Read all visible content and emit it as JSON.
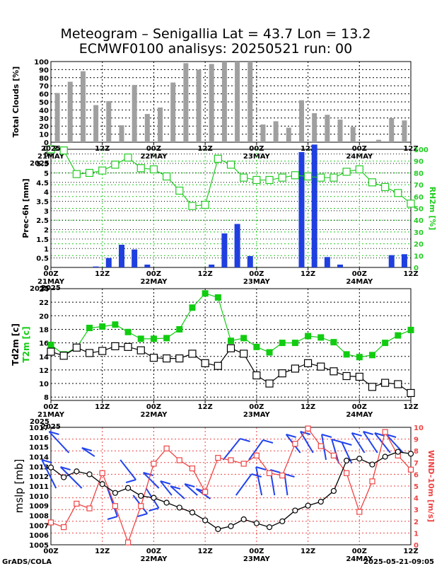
{
  "title": {
    "line1": "Meteogram – Senigallia Lat = 43.7 Lon = 13.2",
    "line2": "ECMWF0100 analisys: 20250521 run: 00"
  },
  "footer": {
    "left": "GrADS/COLA",
    "right": "2025-05-21-09:05"
  },
  "colors": {
    "bars_gray": "#a0a0a0",
    "bars_blue": "#1f3fe0",
    "rh_green": "#22cc22",
    "t2m_green": "#11cc11",
    "wind_red": "#ee4444",
    "barb_blue": "#2244ee",
    "grid": "#000000",
    "grid_green": "#22cc22",
    "grid_red": "#ee4444"
  },
  "time_axis": {
    "ticks": [
      "00Z",
      "12Z",
      "00Z",
      "12Z",
      "00Z",
      "12Z",
      "00Z",
      "12Z"
    ],
    "dates": [
      {
        "pos": 0,
        "label": "21MAY"
      },
      {
        "pos": 2,
        "label": "22MAY"
      },
      {
        "pos": 4,
        "label": "23MAY"
      },
      {
        "pos": 6,
        "label": "24MAY"
      }
    ],
    "year": "2025",
    "n_steps": 28
  },
  "chart_data": [
    {
      "type": "bar",
      "ylabel": "Total Clouds [%]",
      "ylim": [
        0,
        100
      ],
      "yticks": [
        "0",
        "10",
        "20",
        "30",
        "40",
        "50",
        "60",
        "70",
        "80",
        "90",
        "100"
      ],
      "values": [
        61,
        75,
        88,
        46,
        51,
        21,
        71,
        35,
        43,
        74,
        98,
        90,
        97,
        100,
        100,
        100,
        22,
        26,
        18,
        52,
        36,
        34,
        28,
        19,
        0,
        3,
        30,
        27
      ],
      "grid": true
    },
    {
      "type": "bar+line",
      "ylabel": "Prec-6h [mm]",
      "ylabel_right_prefix": "RH2m",
      "ylabel_right_unit": "[%]",
      "ylim": [
        0,
        6.25
      ],
      "yticks": [
        "0",
        "0.5",
        "1",
        "1.5",
        "2",
        "2.5",
        "3",
        "3.5",
        "4",
        "4.5",
        "5",
        "5.5",
        "6"
      ],
      "rh_ticks": [
        "0",
        "10",
        "20",
        "30",
        "40",
        "50",
        "60",
        "70",
        "80",
        "90",
        "100"
      ],
      "prec": [
        0,
        0,
        0,
        0.05,
        0.5,
        1.2,
        0.95,
        0.15,
        0,
        0,
        0,
        0,
        0.15,
        1.8,
        2.3,
        0.6,
        0,
        0,
        0,
        6.1,
        6.5,
        0.55,
        0.15,
        0,
        0,
        0,
        0.65,
        0.7
      ],
      "rh2m": [
        100,
        99,
        79,
        80,
        82,
        87,
        93,
        84,
        83,
        77,
        65,
        52,
        53,
        92,
        87,
        76,
        74,
        74,
        76,
        78,
        77,
        76,
        76,
        81,
        83,
        72,
        68,
        63,
        54
      ],
      "grid": true
    },
    {
      "type": "line",
      "ylabel_prefix": "Td2m",
      "ylabel_unit": "[c]",
      "ylabel_green_prefix": "T2m",
      "ylabel_green_unit": "[c]",
      "ylim": [
        7.5,
        24.0
      ],
      "yticks": [
        "8",
        "10",
        "12",
        "14",
        "16",
        "18",
        "20",
        "22",
        "24"
      ],
      "t2m": [
        15.7,
        14.3,
        15.3,
        18.2,
        18.4,
        18.7,
        17.6,
        16.6,
        16.6,
        16.7,
        18.0,
        21.2,
        23.3,
        22.7,
        16.3,
        16.7,
        15.4,
        14.6,
        16.0,
        16.0,
        17.0,
        16.8,
        16.1,
        14.3,
        13.9,
        14.2,
        16.0,
        17.1,
        17.9
      ],
      "td2m": [
        14.7,
        14.1,
        15.3,
        14.5,
        14.8,
        15.5,
        15.4,
        14.9,
        13.8,
        13.7,
        13.7,
        14.4,
        13.0,
        12.6,
        15.2,
        14.4,
        11.2,
        10.0,
        11.5,
        12.2,
        13.0,
        12.5,
        11.8,
        11.1,
        11.0,
        9.5,
        10.1,
        9.9,
        8.6
      ],
      "grid": true
    },
    {
      "type": "line+barbs",
      "ylabel": "mslp [mb]",
      "ylabel_right": "WIND-10m [m/s]",
      "ylim": [
        1005,
        1017
      ],
      "yticks": [
        "1005",
        "1006",
        "1007",
        "1008",
        "1009",
        "1010",
        "1011",
        "1012",
        "1013",
        "1014",
        "1015",
        "1016",
        "1017"
      ],
      "wind_ticks": [
        "0",
        "1",
        "2",
        "3",
        "4",
        "5",
        "6",
        "7",
        "8",
        "9",
        "10"
      ],
      "mslp": [
        1012.9,
        1011.9,
        1012.5,
        1012.2,
        1011.2,
        1010.3,
        1010.8,
        1010.0,
        1009.8,
        1009.3,
        1008.8,
        1008.3,
        1007.5,
        1006.6,
        1006.9,
        1007.6,
        1007.2,
        1006.8,
        1007.4,
        1008.5,
        1009.0,
        1009.4,
        1010.5,
        1013.6,
        1013.8,
        1013.2,
        1014.0,
        1014.5,
        1014.3
      ],
      "wind": [
        1.9,
        1.5,
        3.5,
        3.1,
        6.1,
        3.3,
        0.2,
        3.3,
        6.9,
        8.2,
        7.2,
        6.5,
        4.5,
        7.4,
        7.2,
        6.9,
        7.6,
        6.1,
        5.9,
        8.6,
        9.9,
        8.4,
        7.6,
        6.1,
        2.8,
        5.4,
        9.6,
        7.6,
        6.4
      ]
    }
  ]
}
